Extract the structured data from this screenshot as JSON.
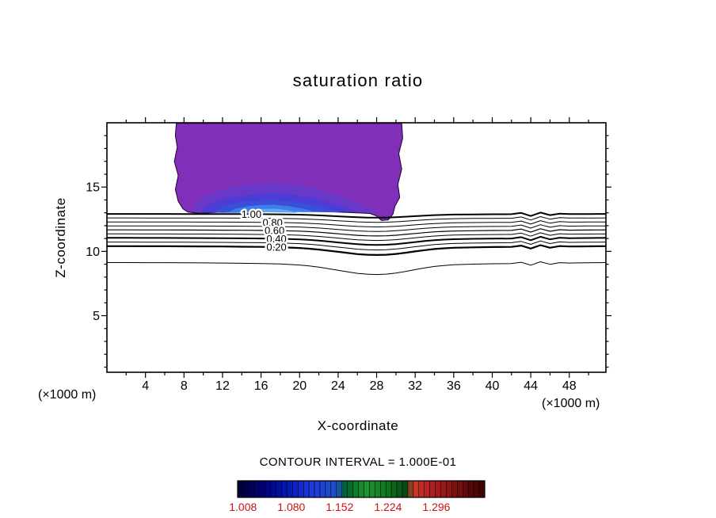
{
  "chart_data": {
    "type": "contour",
    "title": "saturation ratio",
    "xlabel": "X-coordinate",
    "ylabel": "Z-coordinate",
    "x_unit_left": "(×1000 m)",
    "x_unit_right": "(×1000 m)",
    "contour_interval_text": "CONTOUR INTERVAL = 1.000E-01",
    "xlim": [
      0,
      51.8
    ],
    "ylim": [
      0.6,
      20
    ],
    "x_ticks": [
      4,
      8,
      12,
      16,
      20,
      24,
      28,
      32,
      36,
      40,
      44,
      48
    ],
    "y_ticks": [
      5,
      10,
      15
    ],
    "x_minor_step": 2,
    "y_minor_step": 1,
    "grid": false,
    "dip_profile": [
      [
        0,
        0.02,
        0
      ],
      [
        2,
        0.02,
        0
      ],
      [
        4,
        0.03,
        0
      ],
      [
        6,
        0.03,
        0
      ],
      [
        8,
        0.04,
        0
      ],
      [
        10,
        0.05,
        0
      ],
      [
        12,
        0.06,
        0
      ],
      [
        14,
        0.08,
        0
      ],
      [
        16,
        0.1,
        0
      ],
      [
        18,
        0.14,
        0
      ],
      [
        20,
        0.22,
        0
      ],
      [
        21,
        0.3,
        0
      ],
      [
        22,
        0.4,
        0
      ],
      [
        23,
        0.52,
        0
      ],
      [
        24,
        0.65,
        0
      ],
      [
        25,
        0.78,
        0
      ],
      [
        26,
        0.9,
        0
      ],
      [
        27,
        0.97,
        0
      ],
      [
        28,
        1.0,
        0
      ],
      [
        29,
        0.97,
        0
      ],
      [
        30,
        0.88,
        0
      ],
      [
        31,
        0.75,
        0
      ],
      [
        32,
        0.6,
        0
      ],
      [
        33,
        0.46,
        0
      ],
      [
        34,
        0.34,
        0
      ],
      [
        35,
        0.26,
        0
      ],
      [
        36,
        0.2,
        0
      ],
      [
        38,
        0.15,
        0
      ],
      [
        40,
        0.12,
        0
      ],
      [
        42,
        0.1,
        0
      ],
      [
        43,
        0.1,
        0.1
      ],
      [
        44,
        0.09,
        -0.14
      ],
      [
        45,
        0.08,
        0.12
      ],
      [
        46,
        0.08,
        -0.08
      ],
      [
        47,
        0.07,
        0.04
      ],
      [
        48,
        0.06,
        0
      ],
      [
        49,
        0.05,
        0
      ],
      [
        50,
        0.04,
        0
      ],
      [
        51,
        0.03,
        0
      ],
      [
        51.8,
        0.02,
        0
      ]
    ],
    "contour_lines": [
      {
        "level": "1.00",
        "z": 12.92,
        "dip": 0.3,
        "width": 2.0,
        "label_x": 15.0
      },
      {
        "level": "0.90",
        "z": 12.61,
        "dip": 0.35,
        "width": 1.0
      },
      {
        "level": "0.80",
        "z": 12.3,
        "dip": 0.4,
        "width": 1.0,
        "label_x": 17.2
      },
      {
        "level": "0.70",
        "z": 11.99,
        "dip": 0.44,
        "width": 1.0
      },
      {
        "level": "0.60",
        "z": 11.68,
        "dip": 0.48,
        "width": 1.2,
        "label_x": 17.4
      },
      {
        "level": "0.50",
        "z": 11.37,
        "dip": 0.52,
        "width": 1.0
      },
      {
        "level": "0.40",
        "z": 11.06,
        "dip": 0.56,
        "width": 2.0,
        "label_x": 17.6
      },
      {
        "level": "0.30",
        "z": 10.74,
        "dip": 0.63,
        "width": 1.0
      },
      {
        "level": "0.20",
        "z": 10.42,
        "dip": 0.7,
        "width": 2.2,
        "label_x": 17.6
      },
      {
        "level": "0.10",
        "z": 9.15,
        "dip": 0.95,
        "width": 1.0
      }
    ],
    "filled_regions": [
      {
        "name": "saturated-purple",
        "color": "#8030b8",
        "stroke": "#1e0030",
        "points": [
          [
            7.2,
            19.95
          ],
          [
            30.6,
            19.95
          ],
          [
            30.7,
            18.8
          ],
          [
            30.3,
            17.6
          ],
          [
            30.6,
            16.4
          ],
          [
            30.2,
            15.2
          ],
          [
            30.4,
            14.2
          ],
          [
            29.9,
            13.5
          ],
          [
            29.7,
            12.9
          ],
          [
            29.2,
            12.45
          ],
          [
            28.5,
            12.4
          ],
          [
            28.0,
            12.75
          ],
          [
            27.3,
            12.95
          ],
          [
            26,
            13.0
          ],
          [
            24,
            13.05
          ],
          [
            22,
            13.1
          ],
          [
            20,
            13.12
          ],
          [
            18,
            13.12
          ],
          [
            16,
            13.1
          ],
          [
            14,
            13.08
          ],
          [
            12,
            13.05
          ],
          [
            10.5,
            13.0
          ],
          [
            9.3,
            12.98
          ],
          [
            8.4,
            13.05
          ],
          [
            7.9,
            13.3
          ],
          [
            7.4,
            13.9
          ],
          [
            7.1,
            14.8
          ],
          [
            7.4,
            15.9
          ],
          [
            7.0,
            17.0
          ],
          [
            7.3,
            18.1
          ],
          [
            7.1,
            19.0
          ]
        ]
      },
      {
        "name": "band-violet-blue",
        "color": "#6838c8",
        "stroke": "none",
        "points": [
          [
            8.8,
            13.1
          ],
          [
            9.2,
            13.7
          ],
          [
            10,
            14.2
          ],
          [
            11.5,
            14.7
          ],
          [
            13,
            15.0
          ],
          [
            15,
            15.2
          ],
          [
            17,
            15.3
          ],
          [
            19,
            15.25
          ],
          [
            21,
            15.0
          ],
          [
            23,
            14.6
          ],
          [
            25,
            14.1
          ],
          [
            26.5,
            13.6
          ],
          [
            27.6,
            13.2
          ],
          [
            28.2,
            13.0
          ],
          [
            26,
            13.05
          ],
          [
            23,
            13.1
          ],
          [
            20,
            13.12
          ],
          [
            17,
            13.12
          ],
          [
            14,
            13.08
          ],
          [
            11,
            13.02
          ],
          [
            9.5,
            13.0
          ]
        ]
      },
      {
        "name": "band-indigo",
        "color": "#4a3cd4",
        "stroke": "none",
        "points": [
          [
            9.8,
            13.05
          ],
          [
            10.3,
            13.5
          ],
          [
            11.5,
            13.9
          ],
          [
            13,
            14.2
          ],
          [
            15,
            14.4
          ],
          [
            17,
            14.5
          ],
          [
            19,
            14.45
          ],
          [
            21,
            14.2
          ],
          [
            23,
            13.8
          ],
          [
            24.8,
            13.4
          ],
          [
            26,
            13.1
          ],
          [
            24,
            13.08
          ],
          [
            21,
            13.1
          ],
          [
            18,
            13.1
          ],
          [
            15,
            13.08
          ],
          [
            12,
            13.03
          ],
          [
            10.8,
            13.0
          ]
        ]
      },
      {
        "name": "band-blue",
        "color": "#3850d8",
        "stroke": "none",
        "points": [
          [
            11,
            13.02
          ],
          [
            11.8,
            13.4
          ],
          [
            13,
            13.7
          ],
          [
            14.5,
            13.9
          ],
          [
            16.5,
            14.0
          ],
          [
            18.5,
            13.95
          ],
          [
            20.5,
            13.75
          ],
          [
            22,
            13.5
          ],
          [
            23.5,
            13.2
          ],
          [
            24.3,
            13.02
          ],
          [
            22,
            13.05
          ],
          [
            19,
            13.08
          ],
          [
            16,
            13.06
          ],
          [
            13.5,
            13.02
          ],
          [
            12,
            13.0
          ]
        ]
      },
      {
        "name": "band-azure",
        "color": "#3f7de8",
        "stroke": "none",
        "points": [
          [
            12.5,
            13.0
          ],
          [
            13.3,
            13.3
          ],
          [
            14.5,
            13.5
          ],
          [
            16,
            13.6
          ],
          [
            17.5,
            13.62
          ],
          [
            19,
            13.5
          ],
          [
            20.5,
            13.3
          ],
          [
            21.6,
            13.05
          ],
          [
            19.5,
            13.05
          ],
          [
            17,
            13.08
          ],
          [
            15,
            13.05
          ],
          [
            13.5,
            13.0
          ]
        ]
      },
      {
        "name": "band-light-blue",
        "color": "#62a8f0",
        "stroke": "none",
        "points": [
          [
            14.2,
            12.98
          ],
          [
            15,
            13.2
          ],
          [
            16.2,
            13.3
          ],
          [
            17.5,
            13.32
          ],
          [
            18.8,
            13.2
          ],
          [
            19.8,
            13.0
          ],
          [
            18,
            13.02
          ],
          [
            16.5,
            13.04
          ],
          [
            15.2,
            13.0
          ]
        ]
      }
    ],
    "colorbar": {
      "vmin": 1.0,
      "vmax": 1.368,
      "tick_values": [
        "1.008",
        "1.080",
        "1.152",
        "1.224",
        "1.296"
      ],
      "tick_numbers": [
        1.008,
        1.08,
        1.152,
        1.224,
        1.296
      ],
      "n_strips": 45,
      "label_color": "#cc1111",
      "stops": [
        [
          0.0,
          "#000030"
        ],
        [
          0.1,
          "#000078"
        ],
        [
          0.2,
          "#0018b4"
        ],
        [
          0.3,
          "#2238dc"
        ],
        [
          0.4,
          "#1c50c8"
        ],
        [
          0.44,
          "#006428"
        ],
        [
          0.52,
          "#1e9632"
        ],
        [
          0.6,
          "#0f7820"
        ],
        [
          0.68,
          "#064a14"
        ],
        [
          0.71,
          "#c83c28"
        ],
        [
          0.78,
          "#b42020"
        ],
        [
          0.86,
          "#8c1414"
        ],
        [
          0.93,
          "#5c0a0a"
        ],
        [
          1.0,
          "#3c0202"
        ]
      ]
    }
  }
}
